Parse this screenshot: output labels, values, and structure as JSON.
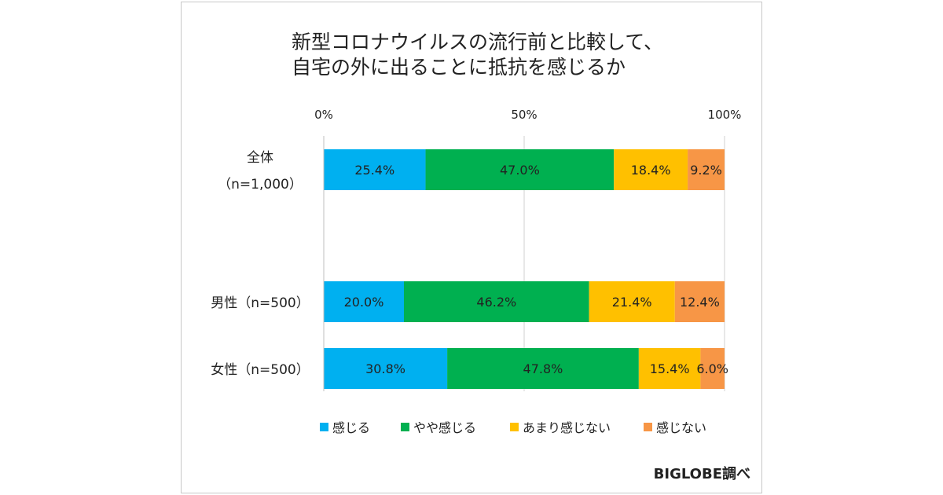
{
  "chart_data": {
    "type": "bar",
    "orientation": "horizontal",
    "stacked": true,
    "title_lines": [
      "新型コロナウイルスの流行前と比較して、",
      "自宅の外に出ることに抵抗を感じるか"
    ],
    "x_ticks": [
      "0%",
      "50%",
      "100%"
    ],
    "xlim": [
      0,
      100
    ],
    "grid": true,
    "legend_position": "bottom",
    "categories": [
      {
        "label_lines": [
          "全体",
          "（n=1,000）"
        ]
      },
      {
        "label_lines": [
          "男性（n=500）"
        ]
      },
      {
        "label_lines": [
          "女性（n=500）"
        ]
      }
    ],
    "series": [
      {
        "name": "感じる",
        "color": "#00b0f0",
        "values": [
          25.4,
          20.0,
          30.8
        ],
        "labels": [
          "25.4%",
          "20.0%",
          "30.8%"
        ]
      },
      {
        "name": "やや感じる",
        "color": "#00b050",
        "values": [
          47.0,
          46.2,
          47.8
        ],
        "labels": [
          "47.0%",
          "46.2%",
          "47.8%"
        ]
      },
      {
        "name": "あまり感じない",
        "color": "#ffc000",
        "values": [
          18.4,
          21.4,
          15.4
        ],
        "labels": [
          "18.4%",
          "21.4%",
          "15.4%"
        ]
      },
      {
        "name": "感じない",
        "color": "#f79646",
        "values": [
          9.2,
          12.4,
          6.0
        ],
        "labels": [
          "9.2%",
          "12.4%",
          "6.0%"
        ]
      }
    ]
  },
  "source": "BIGLOBE調べ"
}
